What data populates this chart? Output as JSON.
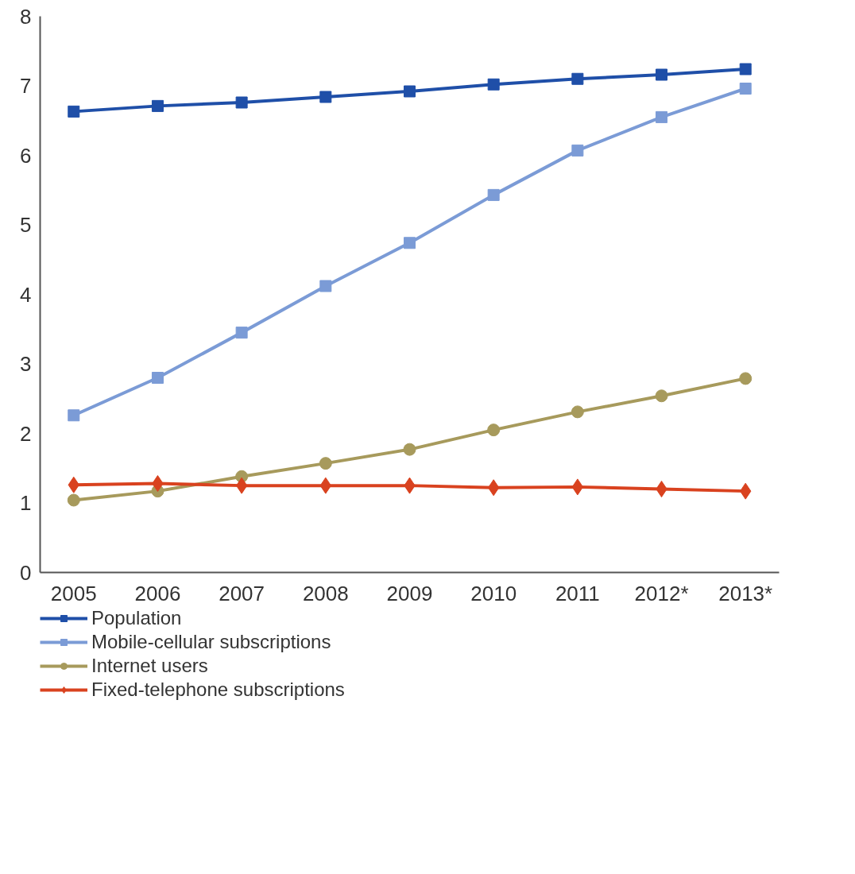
{
  "chart_data": {
    "type": "line",
    "categories": [
      "2005",
      "2006",
      "2007",
      "2008",
      "2009",
      "2010",
      "2011",
      "2012*",
      "2013*"
    ],
    "ylim": [
      0,
      8
    ],
    "yticks": [
      0,
      1,
      2,
      3,
      4,
      5,
      6,
      7,
      8
    ],
    "grid": false,
    "legend": "bottom",
    "line_style": "solid",
    "series": [
      {
        "name": "Population",
        "color": "#1f4fa8",
        "marker": "square",
        "values": [
          6.63,
          6.71,
          6.76,
          6.84,
          6.92,
          7.02,
          7.1,
          7.16,
          7.24
        ]
      },
      {
        "name": "Mobile-cellular subscriptions",
        "color": "#7b9bd6",
        "marker": "square",
        "values": [
          2.26,
          2.8,
          3.45,
          4.12,
          4.74,
          5.43,
          6.07,
          6.55,
          6.96
        ]
      },
      {
        "name": "Internet users",
        "color": "#a79a5c",
        "marker": "circle",
        "values": [
          1.04,
          1.17,
          1.38,
          1.57,
          1.77,
          2.05,
          2.31,
          2.54,
          2.79
        ]
      },
      {
        "name": "Fixed-telephone subscriptions",
        "color": "#d9421f",
        "marker": "diamond",
        "values": [
          1.26,
          1.28,
          1.25,
          1.25,
          1.25,
          1.22,
          1.23,
          1.2,
          1.17
        ]
      }
    ]
  }
}
